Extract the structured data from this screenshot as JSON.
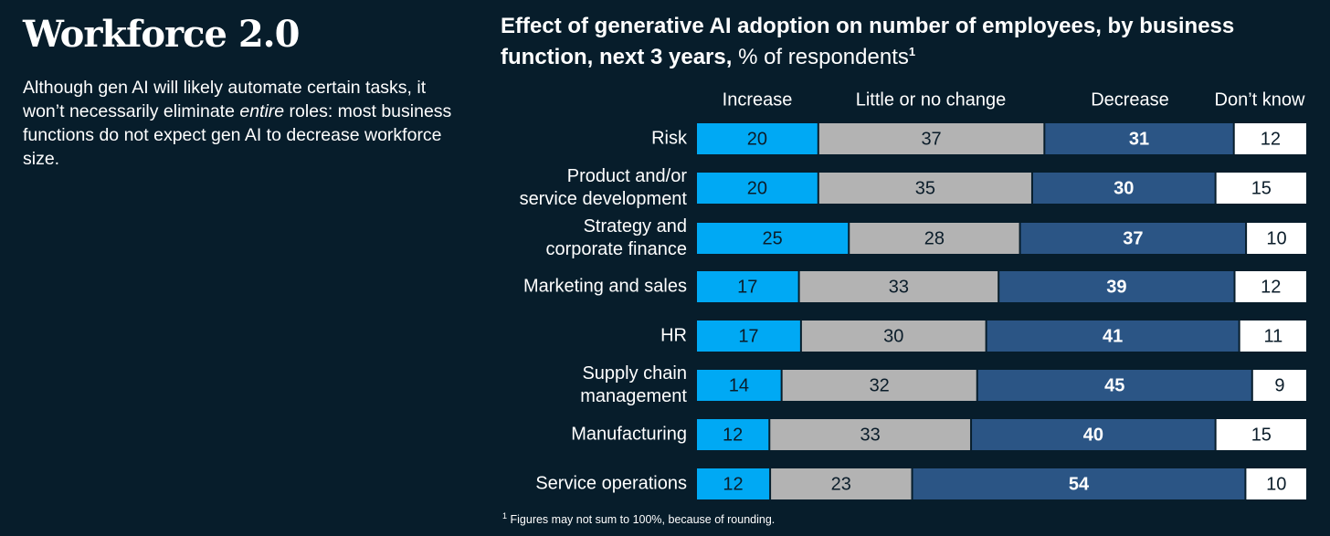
{
  "headline": "Workforce 2.0",
  "intro": {
    "before": "Although gen AI will likely automate certain tasks, it won’t necessarily eliminate ",
    "emphasis": "entire",
    "after": " roles: most business functions do not expect gen AI to decrease workforce size."
  },
  "footnote": {
    "marker": "1",
    "text": "Figures may not sum to 100%, because of rounding."
  },
  "chart_data": {
    "type": "bar",
    "orientation": "horizontal",
    "stacked": true,
    "title_bold": "Effect of generative AI adoption on number of employees, by business function, next 3 years,",
    "title_regular": "% of respondents",
    "title_footnote_marker": "1",
    "categories": [
      [
        "Risk"
      ],
      [
        "Product and/or",
        "service development"
      ],
      [
        "Strategy and",
        "corporate finance"
      ],
      [
        "Marketing and sales"
      ],
      [
        "HR"
      ],
      [
        "Supply chain",
        "management"
      ],
      [
        "Manufacturing"
      ],
      [
        "Service operations"
      ]
    ],
    "series": [
      {
        "name": "Increase",
        "color": "#00a9f4",
        "text_color": "#0b1d2a",
        "values": [
          20,
          20,
          25,
          17,
          17,
          14,
          12,
          12
        ]
      },
      {
        "name": "Little or no change",
        "color": "#b3b3b3",
        "text_color": "#0b1d2a",
        "values": [
          37,
          35,
          28,
          33,
          30,
          32,
          33,
          23
        ]
      },
      {
        "name": "Decrease",
        "color": "#2b5585",
        "text_color": "#ffffff",
        "values": [
          31,
          30,
          37,
          39,
          41,
          45,
          40,
          54
        ]
      },
      {
        "name": "Don’t know",
        "color": "#ffffff",
        "text_color": "#0b1d2a",
        "values": [
          12,
          15,
          10,
          12,
          11,
          9,
          15,
          10
        ]
      }
    ],
    "legend_position": "top",
    "grid": false
  }
}
